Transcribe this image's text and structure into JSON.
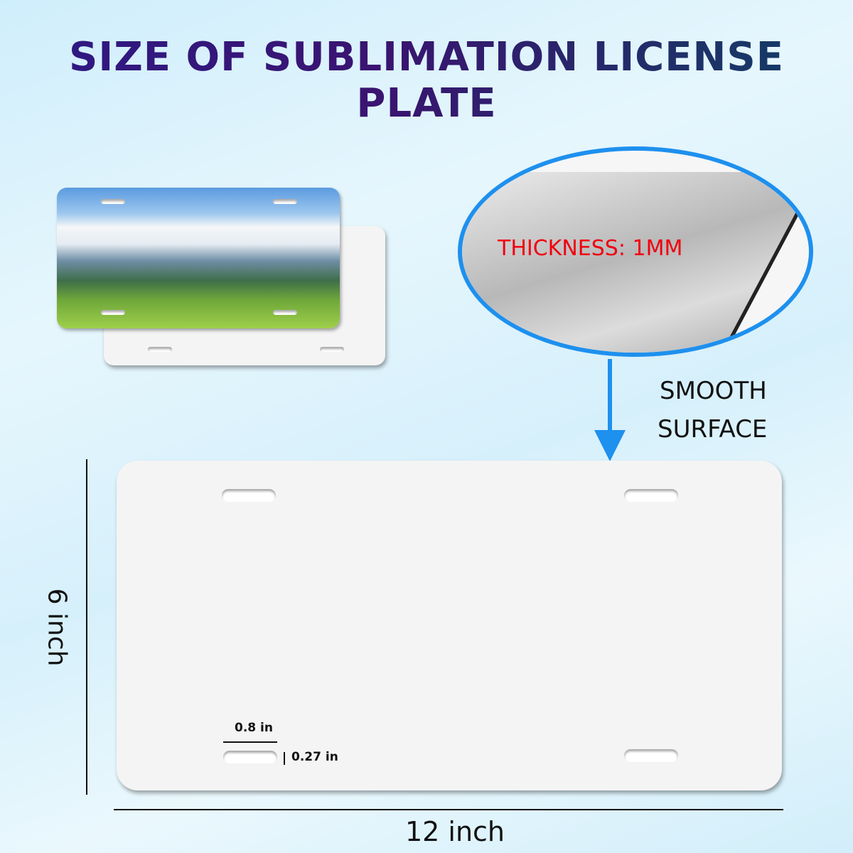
{
  "title": "SIZE OF SUBLIMATION LICENSE PLATE",
  "callout": {
    "thickness": "THICKNESS: 1MM",
    "surface_line1": "SMOOTH",
    "surface_line2": "SURFACE"
  },
  "dimensions": {
    "height": "6 inch",
    "width": "12 inch",
    "slot_width": "0.8 in",
    "slot_height": "0.27 in"
  },
  "colors": {
    "accent_blue": "#1e90ee",
    "thickness_red": "#f00010",
    "title_start": "#2e1a86",
    "title_end": "#0f4064"
  }
}
